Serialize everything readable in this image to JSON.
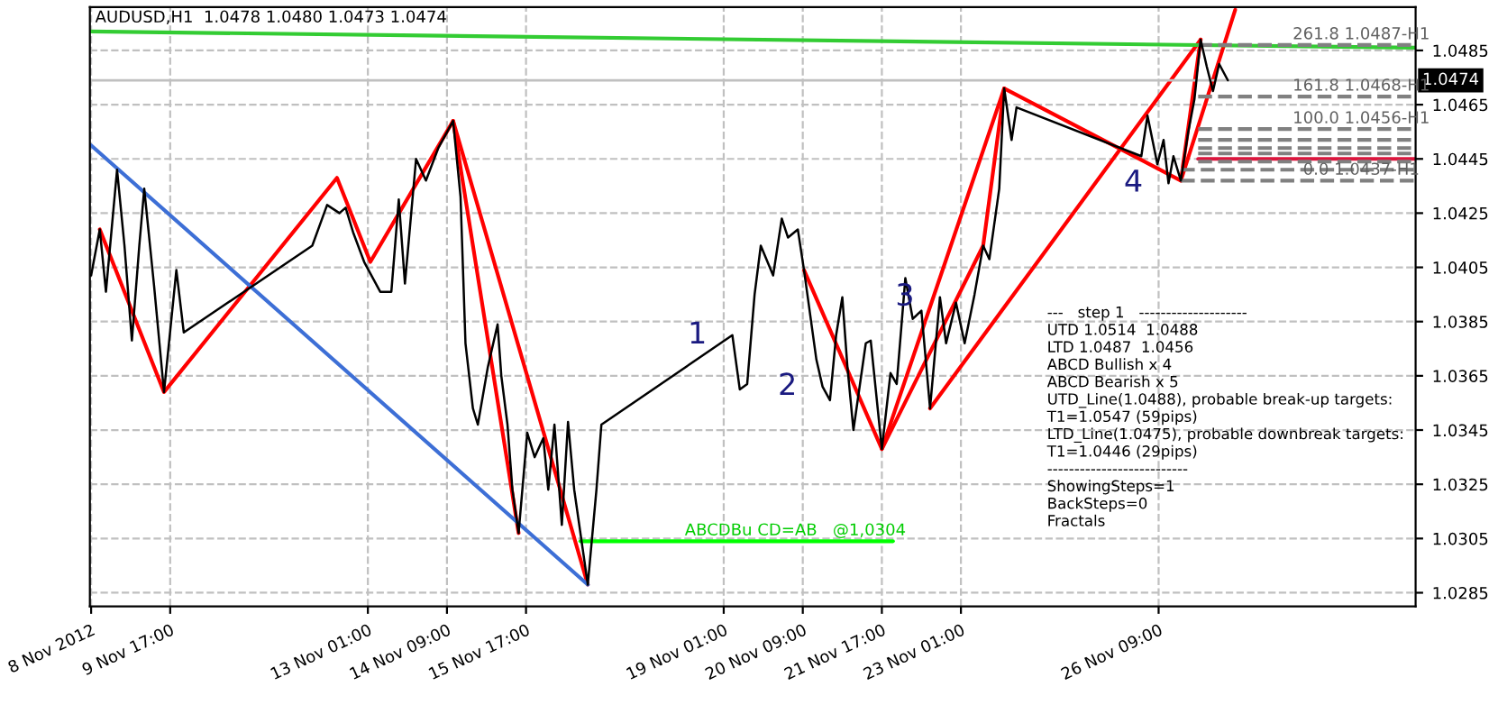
{
  "chart_data": {
    "type": "line",
    "title": "AUDUSD,H1  1.0478 1.0480 1.0473 1.0474",
    "xlim": [
      "2012-11-08T08:30",
      "2012-11-30T17:00"
    ],
    "ylim": [
      1.028,
      1.0501
    ],
    "xticks": [
      {
        "value": "2012-11-08T09:00",
        "label": "8 Nov 2012"
      },
      {
        "value": "2012-11-09T17:00",
        "label": "9 Nov 17:00"
      },
      {
        "value": "2012-11-13T01:00",
        "label": "13 Nov 01:00"
      },
      {
        "value": "2012-11-14T09:00",
        "label": "14 Nov 09:00"
      },
      {
        "value": "2012-11-15T17:00",
        "label": "15 Nov 17:00"
      },
      {
        "value": "2012-11-19T01:00",
        "label": "19 Nov 01:00"
      },
      {
        "value": "2012-11-20T09:00",
        "label": "20 Nov 09:00"
      },
      {
        "value": "2012-11-21T17:00",
        "label": "21 Nov 17:00"
      },
      {
        "value": "2012-11-23T01:00",
        "label": "23 Nov 01:00"
      },
      {
        "value": "2012-11-26T09:00",
        "label": "26 Nov 09:00"
      }
    ],
    "yticks": [
      1.0285,
      1.0305,
      1.0325,
      1.0345,
      1.0365,
      1.0385,
      1.0405,
      1.0425,
      1.0445,
      1.0465,
      1.0485
    ],
    "grid": true,
    "series": [
      {
        "color": "#000000",
        "line_style": "solid",
        "x": [
          "2012-11-08T09:00",
          "2012-11-08T12:30",
          "2012-11-08T15:00",
          "2012-11-08T19:30",
          "2012-11-08T22:30",
          "2012-11-09T01:30",
          "2012-11-09T04:30",
          "2012-11-09T06:30",
          "2012-11-09T10:30",
          "2012-11-09T14:30",
          "2012-11-09T17:30",
          "2012-11-09T19:30",
          "2012-11-09T22:30",
          "2012-11-12T02:30",
          "2012-11-12T08:30",
          "2012-11-12T13:30",
          "2012-11-12T16:00",
          "2012-11-12T19:00",
          "2012-11-12T23:30",
          "2012-11-13T06:00",
          "2012-11-13T10:30",
          "2012-11-13T13:30",
          "2012-11-13T16:00",
          "2012-11-13T20:30",
          "2012-11-14T00:30",
          "2012-11-14T05:30",
          "2012-11-14T11:30",
          "2012-11-14T14:30",
          "2012-11-14T16:30",
          "2012-11-14T19:30",
          "2012-11-14T21:30",
          "2012-11-15T01:30",
          "2012-11-15T05:30",
          "2012-11-15T07:00",
          "2012-11-15T09:30",
          "2012-11-15T11:30",
          "2012-11-15T14:00",
          "2012-11-15T17:30",
          "2012-11-15T20:30",
          "2012-11-16T00:00",
          "2012-11-16T02:00",
          "2012-11-16T04:30",
          "2012-11-16T07:30",
          "2012-11-16T10:00",
          "2012-11-16T12:30",
          "2012-11-16T18:00",
          "2012-11-16T21:30",
          "2012-11-16T23:30",
          "2012-11-19T04:30",
          "2012-11-19T07:30",
          "2012-11-19T10:30",
          "2012-11-19T13:30",
          "2012-11-19T16:00",
          "2012-11-19T21:00",
          "2012-11-20T00:30",
          "2012-11-20T03:00",
          "2012-11-20T07:00",
          "2012-11-20T09:30",
          "2012-11-20T14:30",
          "2012-11-20T17:00",
          "2012-11-20T20:00",
          "2012-11-20T22:30",
          "2012-11-21T01:00",
          "2012-11-21T03:00",
          "2012-11-21T05:30",
          "2012-11-21T10:30",
          "2012-11-21T12:30",
          "2012-11-21T17:00",
          "2012-11-21T20:30",
          "2012-11-21T23:00",
          "2012-11-22T02:30",
          "2012-11-22T05:30",
          "2012-11-22T09:00",
          "2012-11-22T12:30",
          "2012-11-22T16:30",
          "2012-11-22T19:00",
          "2012-11-22T23:00",
          "2012-11-23T02:30",
          "2012-11-23T06:30",
          "2012-11-23T10:00",
          "2012-11-23T12:30",
          "2012-11-23T16:30",
          "2012-11-23T18:30",
          "2012-11-23T21:30",
          "2012-11-23T23:30",
          "2012-11-26T02:00",
          "2012-11-26T04:30",
          "2012-11-26T08:30",
          "2012-11-26T11:00",
          "2012-11-26T13:00",
          "2012-11-26T15:00",
          "2012-11-26T18:00",
          "2012-11-26T21:00",
          "2012-11-26T23:30",
          "2012-11-27T02:00",
          "2012-11-27T04:30",
          "2012-11-27T07:00",
          "2012-11-27T09:30",
          "2012-11-27T13:00"
        ],
        "values": [
          1.0402,
          1.0419,
          1.0396,
          1.0441,
          1.0413,
          1.0378,
          1.0413,
          1.0434,
          1.0398,
          1.0359,
          1.0386,
          1.0404,
          1.0381,
          1.0413,
          1.0428,
          1.0425,
          1.0427,
          1.0418,
          1.0407,
          1.0396,
          1.0396,
          1.043,
          1.0399,
          1.0445,
          1.0437,
          1.0449,
          1.0459,
          1.0431,
          1.0377,
          1.0353,
          1.0347,
          1.0368,
          1.0384,
          1.0365,
          1.0347,
          1.0323,
          1.0307,
          1.0344,
          1.0335,
          1.0342,
          1.0323,
          1.0347,
          1.031,
          1.0348,
          1.0323,
          1.0288,
          1.0323,
          1.0347,
          1.038,
          1.036,
          1.0362,
          1.0395,
          1.0413,
          1.0402,
          1.0423,
          1.0416,
          1.0419,
          1.0404,
          1.0371,
          1.0361,
          1.0356,
          1.038,
          1.0394,
          1.0369,
          1.0345,
          1.0377,
          1.0378,
          1.0338,
          1.0366,
          1.0362,
          1.0401,
          1.0386,
          1.0389,
          1.0353,
          1.0394,
          1.0377,
          1.0392,
          1.0377,
          1.0395,
          1.0413,
          1.0408,
          1.0434,
          1.0471,
          1.0452,
          1.0464,
          1.0446,
          1.0461,
          1.0443,
          1.0452,
          1.0436,
          1.0446,
          1.0437,
          1.0455,
          1.0467,
          1.0489,
          1.0479,
          1.047,
          1.048,
          1.0474
        ]
      },
      {
        "color": "#ff0000",
        "line_style": "solid",
        "x": [
          "2012-11-08T12:30",
          "2012-11-09T14:30",
          "2012-11-12T12:30",
          "2012-11-13T02:00",
          "2012-11-14T11:30",
          "2012-11-16T18:00"
        ],
        "values": [
          1.0419,
          1.0359,
          1.0438,
          1.0407,
          1.0459,
          1.0288
        ]
      },
      {
        "color": "#ff0000",
        "line_style": "solid",
        "x": [
          "2012-11-14T11:30",
          "2012-11-15T14:00"
        ],
        "values": [
          1.0459,
          1.0307
        ]
      },
      {
        "color": "#ff0000",
        "line_style": "solid",
        "x": [
          "2012-11-20T09:30",
          "2012-11-21T17:00",
          "2012-11-23T10:00",
          "2012-11-23T18:30",
          "2012-11-26T18:00",
          "2012-11-27T02:00"
        ],
        "values": [
          1.0404,
          1.0338,
          1.0413,
          1.0471,
          1.0437,
          1.0489
        ]
      },
      {
        "color": "#ff0000",
        "line_style": "solid",
        "x": [
          "2012-11-21T17:00",
          "2012-11-23T18:30"
        ],
        "values": [
          1.0338,
          1.0471
        ]
      },
      {
        "color": "#ff0000",
        "line_style": "solid",
        "x": [
          "2012-11-22T12:30",
          "2012-11-27T02:00"
        ],
        "values": [
          1.0353,
          1.0489
        ]
      },
      {
        "color": "#ff0000",
        "line_style": "solid",
        "x": [
          "2012-11-26T18:00",
          "2012-11-27T16:00"
        ],
        "values": [
          1.0437,
          1.05
        ]
      },
      {
        "color": "#3d6fd6",
        "line_style": "solid",
        "x": [
          "2012-11-08T09:00",
          "2012-11-16T18:00"
        ],
        "values": [
          1.045,
          1.0288
        ]
      },
      {
        "color": "#33cc33",
        "line_style": "solid",
        "x": [
          "2012-11-08T08:30",
          "2012-11-30T17:00"
        ],
        "values": [
          1.0492,
          1.0486
        ]
      },
      {
        "color": "#00ff00",
        "line_style": "solid",
        "x": [
          "2012-11-16T15:00",
          "2012-11-21T21:30"
        ],
        "values": [
          1.0304,
          1.0304
        ]
      },
      {
        "color": "#dc143c",
        "line_style": "solid",
        "x": [
          "2012-11-27T01:00",
          "2012-11-30T17:00"
        ],
        "values": [
          1.0445,
          1.0445
        ]
      },
      {
        "color": "#808080",
        "line_style": "dashed",
        "x": [
          "2012-11-27T01:00",
          "2012-11-30T17:00"
        ],
        "values": [
          1.0487,
          1.0487
        ]
      },
      {
        "color": "#808080",
        "line_style": "dashed",
        "x": [
          "2012-11-27T01:00",
          "2012-11-30T17:00"
        ],
        "values": [
          1.0468,
          1.0468
        ]
      },
      {
        "color": "#808080",
        "line_style": "dashed",
        "x": [
          "2012-11-27T01:00",
          "2012-11-30T17:00"
        ],
        "values": [
          1.0456,
          1.0456
        ]
      },
      {
        "color": "#808080",
        "line_style": "dashed",
        "x": [
          "2012-11-27T01:00",
          "2012-11-30T17:00"
        ],
        "values": [
          1.0452,
          1.0452
        ]
      },
      {
        "color": "#808080",
        "line_style": "dashed",
        "x": [
          "2012-11-27T01:00",
          "2012-11-30T17:00"
        ],
        "values": [
          1.0449,
          1.0449
        ]
      },
      {
        "color": "#808080",
        "line_style": "dashed",
        "x": [
          "2012-11-27T01:00",
          "2012-11-30T17:00"
        ],
        "values": [
          1.0447,
          1.0447
        ]
      },
      {
        "color": "#808080",
        "line_style": "dashed",
        "x": [
          "2012-11-27T01:00",
          "2012-11-30T17:00"
        ],
        "values": [
          1.0444,
          1.0444
        ]
      },
      {
        "color": "#808080",
        "line_style": "dashed",
        "x": [
          "2012-11-26T18:00",
          "2012-11-30T17:00"
        ],
        "values": [
          1.0441,
          1.0441
        ]
      },
      {
        "color": "#808080",
        "line_style": "dashed",
        "x": [
          "2012-11-26T18:00",
          "2012-11-30T17:00"
        ],
        "values": [
          1.0437,
          1.0437
        ]
      }
    ],
    "ref_lines": [
      {
        "axis": "y",
        "value": 1.0474,
        "label": "1.0474",
        "color": "#c0c0c0",
        "line_style": "solid"
      }
    ],
    "annotations": [
      "---   step 1   --------------------",
      "UTD 1.0514  1.0488",
      "LTD 1.0487  1.0456",
      "ABCD Bullish x 4",
      "ABCD Bearish x 5",
      "UTD_Line(1.0488), probable break-up targets:",
      "T1=1.0547 (59pips)",
      "LTD_Line(1.0475), probable downbreak targets:",
      "T1=1.0446 (29pips)",
      "--------------------------",
      "ShowingSteps=1",
      "BackSteps=0",
      "Fractals",
      {
        "text": "261.8 1.0487-H1",
        "x": "2012-11-29T19:00",
        "y": 1.0487
      },
      {
        "text": "161.8 1.0468-H1",
        "x": "2012-11-29T19:00",
        "y": 1.0468
      },
      {
        "text": "100.0 1.0456-H1",
        "x": "2012-11-29T19:00",
        "y": 1.0456
      },
      {
        "text": "0.0 1.0437-H1",
        "x": "2012-11-29T19:00",
        "y": 1.0437
      },
      {
        "text": "ABCDBu CD=AB   @1,0304",
        "x": "2012-11-20T06:00",
        "y": 1.0304
      },
      {
        "text": "1",
        "x": "2012-11-19T04:30",
        "y": 1.038
      },
      {
        "text": "2",
        "x": "2012-11-20T17:00",
        "y": 1.0361
      },
      {
        "text": "3",
        "x": "2012-11-22T16:30",
        "y": 1.0394
      },
      {
        "text": "4",
        "x": "2012-11-26T13:00",
        "y": 1.0436
      }
    ]
  }
}
